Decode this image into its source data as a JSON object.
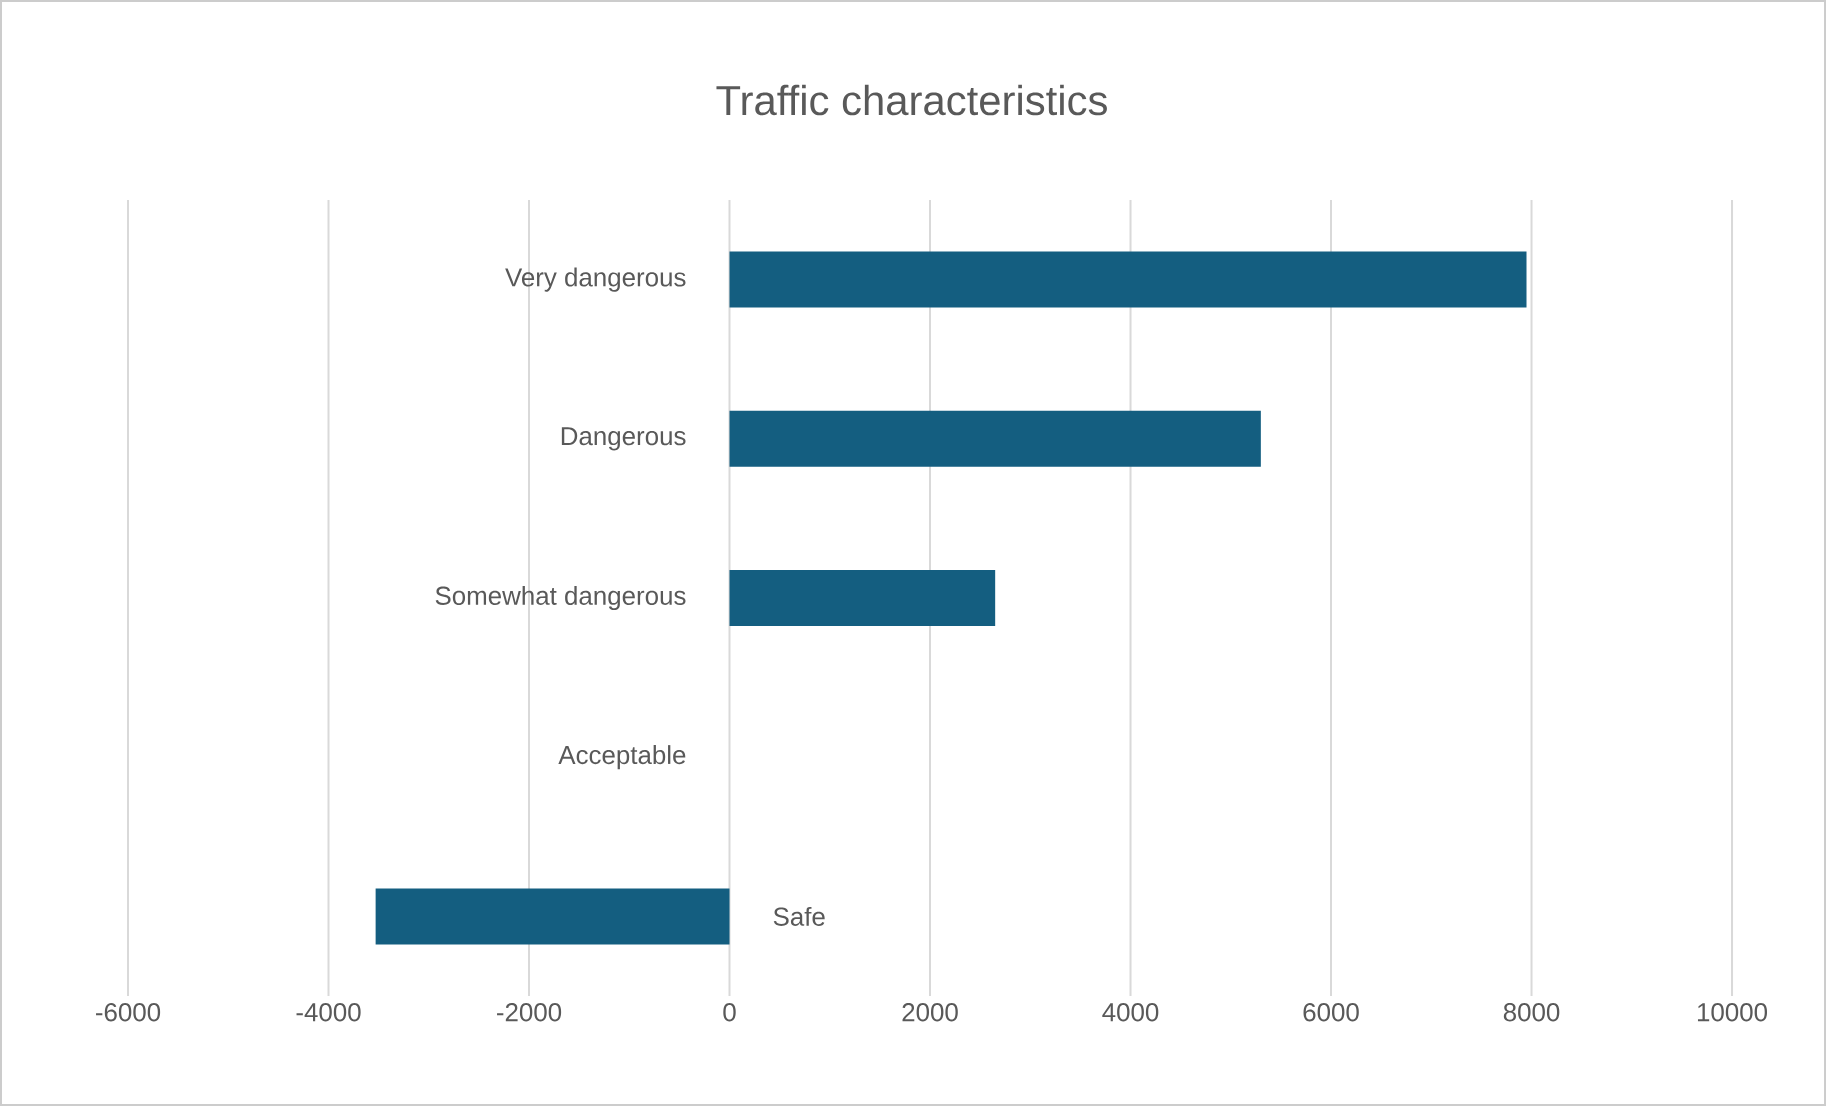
{
  "chart_data": {
    "type": "bar",
    "title": "Traffic characteristics",
    "orientation": "horizontal",
    "categories": [
      "Very dangerous",
      "Dangerous",
      "Somewhat dangerous",
      "Acceptable",
      "Safe"
    ],
    "values": [
      7950,
      5300,
      2650,
      0,
      -3530
    ],
    "color": "#145e80",
    "xlim": [
      -6000,
      10000
    ],
    "xticks": [
      -6000,
      -4000,
      -2000,
      0,
      2000,
      4000,
      6000,
      8000,
      10000
    ],
    "grid": "x"
  }
}
